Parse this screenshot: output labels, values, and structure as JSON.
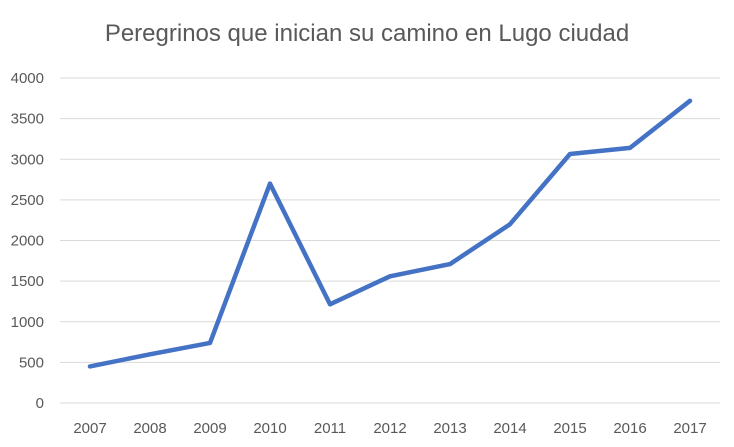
{
  "chart_data": {
    "type": "line",
    "title": "Peregrinos que inician su camino en Lugo ciudad",
    "xlabel": "",
    "ylabel": "",
    "categories": [
      "2007",
      "2008",
      "2009",
      "2010",
      "2011",
      "2012",
      "2013",
      "2014",
      "2015",
      "2016",
      "2017"
    ],
    "series": [
      {
        "values": [
          450,
          600,
          740,
          2700,
          1215,
          1560,
          1710,
          2200,
          3065,
          3140,
          3720
        ],
        "color": "#4472c4"
      }
    ],
    "ylim": [
      0,
      4000
    ],
    "yticks": [
      "0",
      "500",
      "1000",
      "1500",
      "2000",
      "2500",
      "3000",
      "3500",
      "4000"
    ],
    "grid": true,
    "legend": "none"
  }
}
